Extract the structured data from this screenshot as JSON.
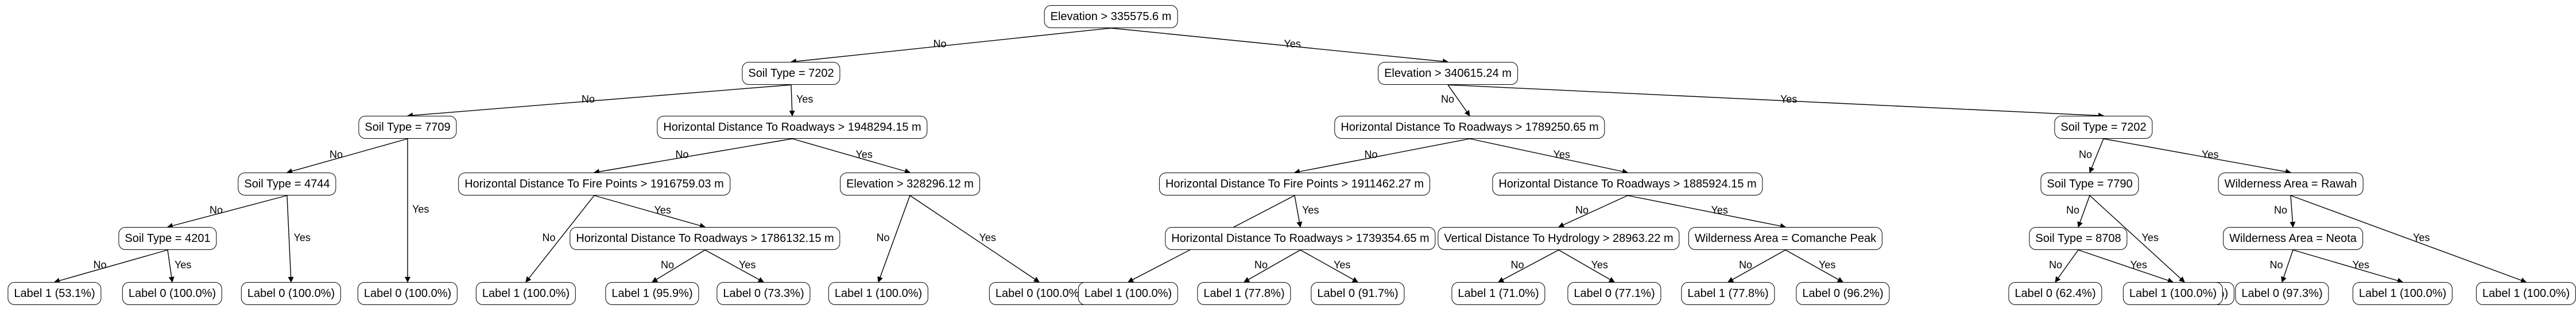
{
  "tree": {
    "branch_labels": {
      "no": "No",
      "yes": "Yes"
    },
    "nodes": [
      {
        "id": "n0",
        "text": "Elevation > 335575.6 m"
      },
      {
        "id": "n1",
        "text": "Soil Type = 7202"
      },
      {
        "id": "n2",
        "text": "Elevation > 340615.24 m"
      },
      {
        "id": "n3",
        "text": "Soil Type = 7709"
      },
      {
        "id": "n4",
        "text": "Horizontal Distance To Roadways > 1948294.15 m"
      },
      {
        "id": "n5",
        "text": "Soil Type = 4744"
      },
      {
        "id": "n6",
        "text": "Soil Type = 4201"
      },
      {
        "id": "n7",
        "text": "Label 1 (53.1%)"
      },
      {
        "id": "n8",
        "text": "Label 0 (100.0%)"
      },
      {
        "id": "n9",
        "text": "Label 0 (100.0%)"
      },
      {
        "id": "n10",
        "text": "Label 0 (100.0%)"
      },
      {
        "id": "n11",
        "text": "Horizontal Distance To Fire Points > 1916759.03 m"
      },
      {
        "id": "n12",
        "text": "Elevation > 328296.12 m"
      },
      {
        "id": "n13",
        "text": "Label 1 (100.0%)"
      },
      {
        "id": "n14",
        "text": "Horizontal Distance To Roadways > 1786132.15 m"
      },
      {
        "id": "n15",
        "text": "Label 1 (95.9%)"
      },
      {
        "id": "n16",
        "text": "Label 0 (73.3%)"
      },
      {
        "id": "n17",
        "text": "Label 1 (100.0%)"
      },
      {
        "id": "n18",
        "text": "Label 0 (100.0%)"
      },
      {
        "id": "n19",
        "text": "Horizontal Distance To Roadways > 1789250.65 m"
      },
      {
        "id": "n20",
        "text": "Soil Type = 7202"
      },
      {
        "id": "n21",
        "text": "Horizontal Distance To Fire Points > 1911462.27 m"
      },
      {
        "id": "n22",
        "text": "Horizontal Distance To Roadways > 1885924.15 m"
      },
      {
        "id": "n23",
        "text": "Label 1 (100.0%)"
      },
      {
        "id": "n24",
        "text": "Horizontal Distance To Roadways > 1739354.65 m"
      },
      {
        "id": "n25",
        "text": "Label 1 (77.8%)"
      },
      {
        "id": "n26",
        "text": "Label 0 (91.7%)"
      },
      {
        "id": "n27",
        "text": "Vertical Distance To Hydrology > 28963.22 m"
      },
      {
        "id": "n28",
        "text": "Wilderness Area = Comanche Peak"
      },
      {
        "id": "n29",
        "text": "Label 1 (71.0%)"
      },
      {
        "id": "n30",
        "text": "Label 0 (77.1%)"
      },
      {
        "id": "n31",
        "text": "Label 1 (77.8%)"
      },
      {
        "id": "n32",
        "text": "Label 0 (96.2%)"
      },
      {
        "id": "n33",
        "text": "Soil Type = 7790"
      },
      {
        "id": "n34",
        "text": "Wilderness Area = Rawah"
      },
      {
        "id": "n35",
        "text": "Soil Type = 8708"
      },
      {
        "id": "n36",
        "text": "Label 1 (100.0%)"
      },
      {
        "id": "n37",
        "text": "Label 0 (62.4%)"
      },
      {
        "id": "n38",
        "text": "Label 1 (100.0%)"
      },
      {
        "id": "n39",
        "text": "Wilderness Area = Neota"
      },
      {
        "id": "n40",
        "text": "Label 1 (100.0%)"
      },
      {
        "id": "n41",
        "text": "Label 0 (97.3%)"
      },
      {
        "id": "n42",
        "text": "Label 1 (100.0%)"
      }
    ],
    "edges": [
      {
        "from": "n0",
        "to": "n1",
        "branch": "no"
      },
      {
        "from": "n0",
        "to": "n2",
        "branch": "yes"
      },
      {
        "from": "n1",
        "to": "n3",
        "branch": "no"
      },
      {
        "from": "n1",
        "to": "n4",
        "branch": "yes"
      },
      {
        "from": "n3",
        "to": "n5",
        "branch": "no"
      },
      {
        "from": "n3",
        "to": "n10",
        "branch": "yes"
      },
      {
        "from": "n5",
        "to": "n6",
        "branch": "no"
      },
      {
        "from": "n5",
        "to": "n9",
        "branch": "yes"
      },
      {
        "from": "n6",
        "to": "n7",
        "branch": "no"
      },
      {
        "from": "n6",
        "to": "n8",
        "branch": "yes"
      },
      {
        "from": "n4",
        "to": "n11",
        "branch": "no"
      },
      {
        "from": "n4",
        "to": "n12",
        "branch": "yes"
      },
      {
        "from": "n11",
        "to": "n13",
        "branch": "no"
      },
      {
        "from": "n11",
        "to": "n14",
        "branch": "yes"
      },
      {
        "from": "n14",
        "to": "n15",
        "branch": "no"
      },
      {
        "from": "n14",
        "to": "n16",
        "branch": "yes"
      },
      {
        "from": "n12",
        "to": "n17",
        "branch": "no"
      },
      {
        "from": "n12",
        "to": "n18",
        "branch": "yes"
      },
      {
        "from": "n2",
        "to": "n19",
        "branch": "no"
      },
      {
        "from": "n2",
        "to": "n20",
        "branch": "yes"
      },
      {
        "from": "n19",
        "to": "n21",
        "branch": "no"
      },
      {
        "from": "n19",
        "to": "n22",
        "branch": "yes"
      },
      {
        "from": "n21",
        "to": "n23",
        "branch": "no"
      },
      {
        "from": "n21",
        "to": "n24",
        "branch": "yes"
      },
      {
        "from": "n24",
        "to": "n25",
        "branch": "no"
      },
      {
        "from": "n24",
        "to": "n26",
        "branch": "yes"
      },
      {
        "from": "n22",
        "to": "n27",
        "branch": "no"
      },
      {
        "from": "n22",
        "to": "n28",
        "branch": "yes"
      },
      {
        "from": "n27",
        "to": "n29",
        "branch": "no"
      },
      {
        "from": "n27",
        "to": "n30",
        "branch": "yes"
      },
      {
        "from": "n28",
        "to": "n31",
        "branch": "no"
      },
      {
        "from": "n28",
        "to": "n32",
        "branch": "yes"
      },
      {
        "from": "n20",
        "to": "n33",
        "branch": "no"
      },
      {
        "from": "n20",
        "to": "n34",
        "branch": "yes"
      },
      {
        "from": "n33",
        "to": "n35",
        "branch": "no"
      },
      {
        "from": "n33",
        "to": "n36",
        "branch": "yes"
      },
      {
        "from": "n35",
        "to": "n37",
        "branch": "no"
      },
      {
        "from": "n35",
        "to": "n38",
        "branch": "yes"
      },
      {
        "from": "n34",
        "to": "n39",
        "branch": "no"
      },
      {
        "from": "n34",
        "to": "n40",
        "branch": "yes"
      },
      {
        "from": "n39",
        "to": "n41",
        "branch": "no"
      },
      {
        "from": "n39",
        "to": "n42",
        "branch": "yes"
      }
    ]
  }
}
